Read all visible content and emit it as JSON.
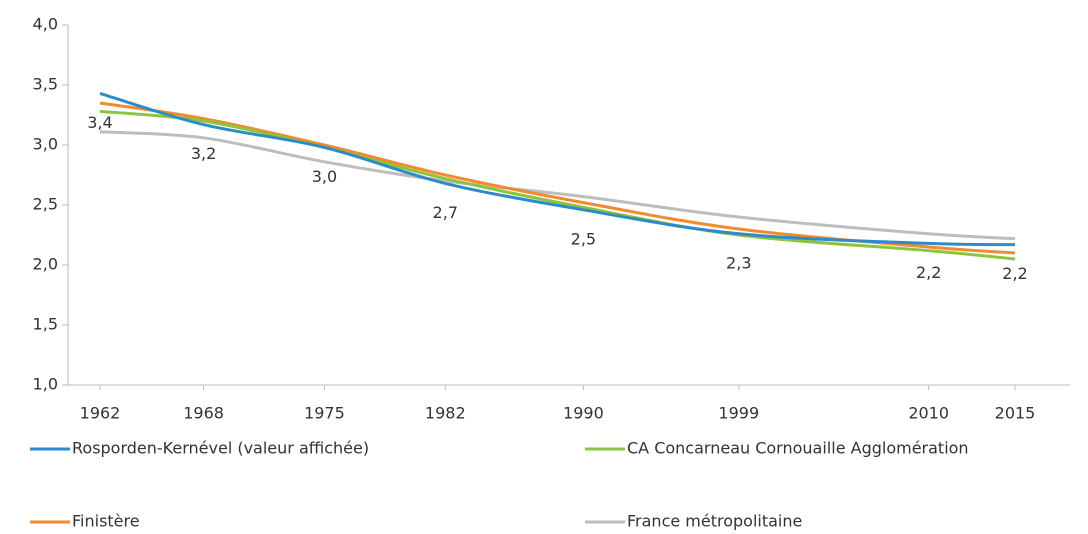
{
  "chart_data": {
    "type": "line",
    "x": [
      1962,
      1968,
      1975,
      1982,
      1990,
      1999,
      2010,
      2015
    ],
    "xlim": [
      1962,
      2015
    ],
    "xticks": [
      1962,
      1968,
      1975,
      1982,
      1990,
      1999,
      2010,
      2015
    ],
    "ylim": [
      1,
      4
    ],
    "yticks": [
      {
        "value": 1,
        "label": "1,0"
      },
      {
        "value": 1.5,
        "label": "1,5"
      },
      {
        "value": 2,
        "label": "2,0"
      },
      {
        "value": 2.5,
        "label": "2,5"
      },
      {
        "value": 3,
        "label": "3,0"
      },
      {
        "value": 3.5,
        "label": "3,5"
      },
      {
        "value": 4,
        "label": "4,0"
      }
    ],
    "grid": false,
    "legend": "bottom",
    "series": [
      {
        "name": "Rosporden-Kernével (valeur affichée)",
        "color": "#2e8bc9",
        "values": [
          3.43,
          3.17,
          2.98,
          2.68,
          2.46,
          2.26,
          2.18,
          2.17
        ],
        "value_labels": [
          "3,4",
          "3,2",
          "3,0",
          "2,7",
          "2,5",
          "2,3",
          "2,2",
          "2,2"
        ]
      },
      {
        "name": "CA Concarneau Cornouaille Agglomération",
        "color": "#8cc43c",
        "values": [
          3.28,
          3.2,
          2.98,
          2.72,
          2.48,
          2.25,
          2.12,
          2.05
        ]
      },
      {
        "name": "Finistère",
        "color": "#f28a30",
        "values": [
          3.35,
          3.22,
          3.0,
          2.75,
          2.52,
          2.3,
          2.15,
          2.1
        ]
      },
      {
        "name": "France métropolitaine",
        "color": "#bdbdbd",
        "values": [
          3.11,
          3.06,
          2.86,
          2.7,
          2.57,
          2.4,
          2.26,
          2.22
        ]
      }
    ]
  }
}
